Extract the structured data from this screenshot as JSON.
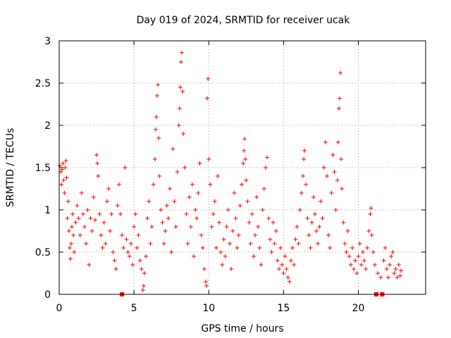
{
  "chart_data": {
    "type": "scatter",
    "title": "Day 019 of 2024, SRMTID for receiver ucak",
    "xlabel": "GPS time / hours",
    "ylabel": "SRMTID / TECUs",
    "xlim": [
      0,
      24.5
    ],
    "ylim": [
      0,
      3
    ],
    "xticks": [
      0,
      5,
      10,
      15,
      20
    ],
    "xtick_labels": [
      "0",
      "5",
      "10",
      "15",
      "20"
    ],
    "yticks": [
      0,
      0.5,
      1,
      1.5,
      2,
      2.5,
      3
    ],
    "ytick_labels": [
      "0",
      "0.5",
      "1",
      "1.5",
      "2",
      "2.5",
      "3"
    ],
    "grid": true,
    "point_color": "#ff0000",
    "marker": "plus",
    "series": [
      {
        "name": "SRMTID",
        "points": [
          [
            0.05,
            1.52
          ],
          [
            0.1,
            1.45
          ],
          [
            0.15,
            1.3
          ],
          [
            0.2,
            1.48
          ],
          [
            0.25,
            1.55
          ],
          [
            0.3,
            1.35
          ],
          [
            0.35,
            1.2
          ],
          [
            0.4,
            1.5
          ],
          [
            0.45,
            1.58
          ],
          [
            0.5,
            1.38
          ],
          [
            0.55,
            0.9
          ],
          [
            0.6,
            1.1
          ],
          [
            0.65,
            0.75
          ],
          [
            0.7,
            0.55
          ],
          [
            0.75,
            0.42
          ],
          [
            0.8,
            0.6
          ],
          [
            0.85,
            0.8
          ],
          [
            0.9,
            0.95
          ],
          [
            0.95,
            0.7
          ],
          [
            1.0,
            0.5
          ],
          [
            1.1,
            0.85
          ],
          [
            1.2,
            1.05
          ],
          [
            1.3,
            0.9
          ],
          [
            1.4,
            0.7
          ],
          [
            1.5,
            1.2
          ],
          [
            1.6,
            0.95
          ],
          [
            1.7,
            0.8
          ],
          [
            1.8,
            0.6
          ],
          [
            1.9,
            1.0
          ],
          [
            2.0,
            0.35
          ],
          [
            2.1,
            0.9
          ],
          [
            2.2,
            0.75
          ],
          [
            2.3,
            1.15
          ],
          [
            2.4,
            0.88
          ],
          [
            2.5,
            1.65
          ],
          [
            2.55,
            1.55
          ],
          [
            2.6,
            1.4
          ],
          [
            2.7,
            0.95
          ],
          [
            2.8,
            0.7
          ],
          [
            2.9,
            0.55
          ],
          [
            3.0,
            0.85
          ],
          [
            3.1,
            0.6
          ],
          [
            3.2,
            1.1
          ],
          [
            3.3,
            1.25
          ],
          [
            3.4,
            0.75
          ],
          [
            3.5,
            0.95
          ],
          [
            3.6,
            0.5
          ],
          [
            3.7,
            0.4
          ],
          [
            3.8,
            0.3
          ],
          [
            3.9,
            1.05
          ],
          [
            4.0,
            1.3
          ],
          [
            4.1,
            0.95
          ],
          [
            4.2,
            0.7
          ],
          [
            4.3,
            0.55
          ],
          [
            4.4,
            1.5
          ],
          [
            4.5,
            0.65
          ],
          [
            4.6,
            0.5
          ],
          [
            4.7,
            0.45
          ],
          [
            4.8,
            0.6
          ],
          [
            4.9,
            0.35
          ],
          [
            5.0,
            0.8
          ],
          [
            5.1,
            0.95
          ],
          [
            5.2,
            0.55
          ],
          [
            5.3,
            0.7
          ],
          [
            5.4,
            0.4
          ],
          [
            5.5,
            0.3
          ],
          [
            5.6,
            0.05
          ],
          [
            5.65,
            0.1
          ],
          [
            5.7,
            0.25
          ],
          [
            5.8,
            0.45
          ],
          [
            5.9,
            0.9
          ],
          [
            6.0,
            1.1
          ],
          [
            6.1,
            0.6
          ],
          [
            6.2,
            0.8
          ],
          [
            6.3,
            1.3
          ],
          [
            6.4,
            1.6
          ],
          [
            6.45,
            1.95
          ],
          [
            6.5,
            2.1
          ],
          [
            6.55,
            2.35
          ],
          [
            6.6,
            2.48
          ],
          [
            6.65,
            1.85
          ],
          [
            6.7,
            1.4
          ],
          [
            6.8,
            1.0
          ],
          [
            6.9,
            0.85
          ],
          [
            7.0,
            0.6
          ],
          [
            7.1,
            0.75
          ],
          [
            7.2,
            1.05
          ],
          [
            7.3,
            0.9
          ],
          [
            7.4,
            1.25
          ],
          [
            7.5,
            0.5
          ],
          [
            7.6,
            1.72
          ],
          [
            7.7,
            1.1
          ],
          [
            7.8,
            0.8
          ],
          [
            7.9,
            1.45
          ],
          [
            8.0,
            2.0
          ],
          [
            8.05,
            2.2
          ],
          [
            8.1,
            2.45
          ],
          [
            8.15,
            2.75
          ],
          [
            8.2,
            2.86
          ],
          [
            8.25,
            2.4
          ],
          [
            8.3,
            1.9
          ],
          [
            8.4,
            1.5
          ],
          [
            8.5,
            0.95
          ],
          [
            8.6,
            0.6
          ],
          [
            8.7,
            1.15
          ],
          [
            8.8,
            0.8
          ],
          [
            8.9,
            1.3
          ],
          [
            9.0,
            0.45
          ],
          [
            9.1,
            1.0
          ],
          [
            9.2,
            0.9
          ],
          [
            9.3,
            1.2
          ],
          [
            9.4,
            1.55
          ],
          [
            9.5,
            0.7
          ],
          [
            9.6,
            0.55
          ],
          [
            9.7,
            0.3
          ],
          [
            9.8,
            0.15
          ],
          [
            9.85,
            0.1
          ],
          [
            9.9,
            2.32
          ],
          [
            9.95,
            2.55
          ],
          [
            10.0,
            1.6
          ],
          [
            10.1,
            1.3
          ],
          [
            10.2,
            0.8
          ],
          [
            10.3,
            0.95
          ],
          [
            10.4,
            1.1
          ],
          [
            10.5,
            0.55
          ],
          [
            10.6,
            1.4
          ],
          [
            10.7,
            0.85
          ],
          [
            10.8,
            0.5
          ],
          [
            10.9,
            0.35
          ],
          [
            11.0,
            0.65
          ],
          [
            11.1,
            0.45
          ],
          [
            11.2,
            0.8
          ],
          [
            11.3,
            1.0
          ],
          [
            11.4,
            0.6
          ],
          [
            11.5,
            0.3
          ],
          [
            11.6,
            0.75
          ],
          [
            11.7,
            1.2
          ],
          [
            11.8,
            0.9
          ],
          [
            11.9,
            0.55
          ],
          [
            12.0,
            0.7
          ],
          [
            12.1,
            1.05
          ],
          [
            12.2,
            1.3
          ],
          [
            12.3,
            1.55
          ],
          [
            12.35,
            1.7
          ],
          [
            12.4,
            1.84
          ],
          [
            12.45,
            1.6
          ],
          [
            12.5,
            1.35
          ],
          [
            12.6,
            1.1
          ],
          [
            12.7,
            0.85
          ],
          [
            12.8,
            0.6
          ],
          [
            12.9,
            0.95
          ],
          [
            13.0,
            0.45
          ],
          [
            13.1,
            0.7
          ],
          [
            13.2,
            1.15
          ],
          [
            13.3,
            0.8
          ],
          [
            13.4,
            0.55
          ],
          [
            13.5,
            0.35
          ],
          [
            13.6,
            1.0
          ],
          [
            13.7,
            1.25
          ],
          [
            13.8,
            1.5
          ],
          [
            13.9,
            1.62
          ],
          [
            14.0,
            0.9
          ],
          [
            14.1,
            0.65
          ],
          [
            14.2,
            0.5
          ],
          [
            14.3,
            0.85
          ],
          [
            14.4,
            0.6
          ],
          [
            14.5,
            0.75
          ],
          [
            14.6,
            0.4
          ],
          [
            14.7,
            0.3
          ],
          [
            14.8,
            0.55
          ],
          [
            14.9,
            0.35
          ],
          [
            15.0,
            0.25
          ],
          [
            15.1,
            0.45
          ],
          [
            15.2,
            0.3
          ],
          [
            15.3,
            0.2
          ],
          [
            15.4,
            0.15
          ],
          [
            15.5,
            0.4
          ],
          [
            15.6,
            0.55
          ],
          [
            15.7,
            0.35
          ],
          [
            15.8,
            0.65
          ],
          [
            15.9,
            0.8
          ],
          [
            16.0,
            0.6
          ],
          [
            16.1,
            1.0
          ],
          [
            16.2,
            1.2
          ],
          [
            16.3,
            1.4
          ],
          [
            16.35,
            1.6
          ],
          [
            16.4,
            1.7
          ],
          [
            16.5,
            1.3
          ],
          [
            16.6,
            0.9
          ],
          [
            16.7,
            0.7
          ],
          [
            16.8,
            0.55
          ],
          [
            16.9,
            0.85
          ],
          [
            17.0,
            1.15
          ],
          [
            17.1,
            0.95
          ],
          [
            17.2,
            0.75
          ],
          [
            17.3,
            0.6
          ],
          [
            17.4,
            0.8
          ],
          [
            17.5,
            1.1
          ],
          [
            17.6,
            0.9
          ],
          [
            17.7,
            1.5
          ],
          [
            17.8,
            1.8
          ],
          [
            17.9,
            1.4
          ],
          [
            18.0,
            0.7
          ],
          [
            18.1,
            0.55
          ],
          [
            18.2,
            1.2
          ],
          [
            18.3,
            1.65
          ],
          [
            18.4,
            1.45
          ],
          [
            18.5,
            1.0
          ],
          [
            18.6,
            1.35
          ],
          [
            18.65,
            1.8
          ],
          [
            18.7,
            2.2
          ],
          [
            18.75,
            2.32
          ],
          [
            18.8,
            2.62
          ],
          [
            18.85,
            1.6
          ],
          [
            18.9,
            1.25
          ],
          [
            19.0,
            0.85
          ],
          [
            19.1,
            0.6
          ],
          [
            19.2,
            0.5
          ],
          [
            19.3,
            0.75
          ],
          [
            19.4,
            0.45
          ],
          [
            19.5,
            0.35
          ],
          [
            19.6,
            0.55
          ],
          [
            19.7,
            0.3
          ],
          [
            19.8,
            0.4
          ],
          [
            19.9,
            0.25
          ],
          [
            20.0,
            0.45
          ],
          [
            20.1,
            0.6
          ],
          [
            20.2,
            0.35
          ],
          [
            20.3,
            0.5
          ],
          [
            20.4,
            0.4
          ],
          [
            20.5,
            0.3
          ],
          [
            20.6,
            0.55
          ],
          [
            20.7,
            0.75
          ],
          [
            20.8,
            0.95
          ],
          [
            20.85,
            1.02
          ],
          [
            20.9,
            0.7
          ],
          [
            21.0,
            0.5
          ],
          [
            21.1,
            0.35
          ],
          [
            21.3,
            0.25
          ],
          [
            21.5,
            0.2
          ],
          [
            21.7,
            0.4
          ],
          [
            21.8,
            0.55
          ],
          [
            21.9,
            0.3
          ],
          [
            22.0,
            0.2
          ],
          [
            22.1,
            0.35
          ],
          [
            22.2,
            0.45
          ],
          [
            22.3,
            0.5
          ],
          [
            22.4,
            0.25
          ],
          [
            22.5,
            0.3
          ],
          [
            22.6,
            0.2
          ],
          [
            22.7,
            0.35
          ],
          [
            22.8,
            0.22
          ],
          [
            22.85,
            0.28
          ]
        ]
      }
    ],
    "baseline_markers": [
      4.2,
      21.2,
      21.6
    ]
  }
}
